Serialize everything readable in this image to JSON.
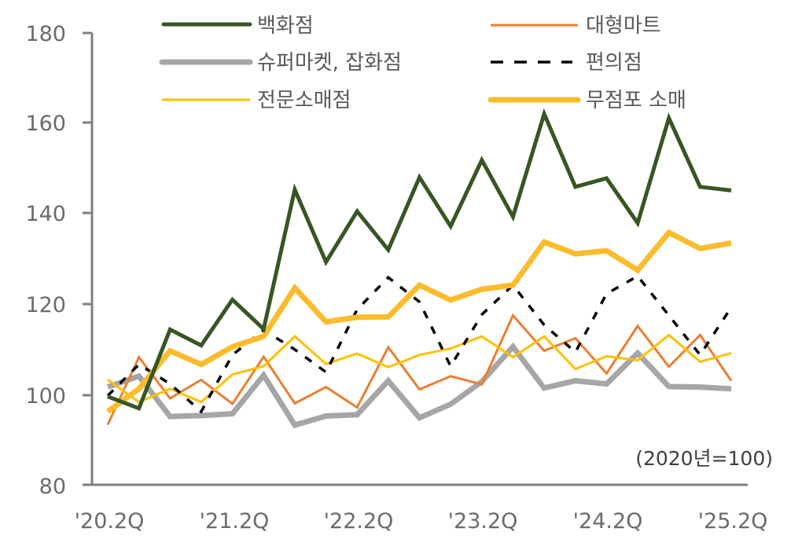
{
  "chart_data": {
    "type": "line",
    "title": "",
    "xlabel": "",
    "ylabel": "",
    "annotation": "(2020년=100)",
    "ylim": [
      80,
      180
    ],
    "yticks": [
      80,
      100,
      120,
      140,
      160,
      180
    ],
    "grid": false,
    "legend_position": "top",
    "x": [
      "'20.2Q",
      "'20.3Q",
      "'20.4Q",
      "'21.1Q",
      "'21.2Q",
      "'21.3Q",
      "'21.4Q",
      "'22.1Q",
      "'22.2Q",
      "'22.3Q",
      "'22.4Q",
      "'23.1Q",
      "'23.2Q",
      "'23.3Q",
      "'23.4Q",
      "'24.1Q",
      "'24.2Q",
      "'24.3Q",
      "'24.4Q",
      "'25.1Q",
      "'25.2Q"
    ],
    "x_tick_labels": [
      "'20.2Q",
      "'21.2Q",
      "'22.2Q",
      "'23.2Q",
      "'24.2Q",
      "'25.2Q"
    ],
    "x_tick_indices": [
      0,
      4,
      8,
      12,
      16,
      20
    ],
    "series": [
      {
        "name": "백화점",
        "color": "#375623",
        "width": 5,
        "dash": "",
        "values": [
          99.7,
          97.1,
          114.5,
          111.0,
          121.1,
          114.6,
          145.4,
          129.4,
          140.6,
          132.1,
          148.1,
          137.3,
          151.9,
          139.4,
          162.1,
          146.0,
          147.9,
          138.0,
          161.2,
          146.0,
          145.2
        ]
      },
      {
        "name": "대형마트",
        "color": "#ED7D31",
        "width": 3,
        "dash": "",
        "values": [
          93.5,
          108.4,
          99.3,
          103.4,
          98.1,
          108.5,
          98.2,
          101.8,
          97.3,
          110.6,
          101.3,
          104.2,
          102.4,
          117.6,
          109.8,
          112.6,
          104.8,
          115.3,
          106.3,
          113.3,
          103.2
        ]
      },
      {
        "name": "슈퍼마켓, 잡화점",
        "color": "#A6A6A6",
        "width": 7,
        "dash": "",
        "values": [
          101.8,
          104.2,
          95.3,
          95.5,
          95.9,
          104.4,
          93.4,
          95.4,
          95.7,
          103.2,
          95.0,
          98.0,
          103.0,
          110.7,
          101.6,
          103.2,
          102.5,
          109.3,
          101.9,
          101.8,
          101.4
        ]
      },
      {
        "name": "편의점",
        "color": "#000000",
        "width": 3.5,
        "dash": "10 12",
        "values": [
          99.9,
          106.8,
          102.5,
          96.4,
          108.9,
          114.4,
          110.1,
          105.1,
          118.9,
          126.0,
          120.6,
          106.4,
          117.8,
          124.3,
          115.5,
          109.5,
          122.4,
          126.3,
          117.6,
          108.9,
          119.4
        ]
      },
      {
        "name": "전문소매점",
        "color": "#FFC000",
        "width": 3,
        "dash": "",
        "values": [
          103.4,
          98.5,
          101.4,
          98.5,
          104.6,
          106.4,
          113.0,
          106.9,
          109.2,
          106.2,
          108.9,
          110.3,
          113.0,
          108.4,
          113.0,
          105.8,
          108.6,
          107.7,
          113.3,
          107.4,
          109.3
        ]
      },
      {
        "name": "무점포 소매",
        "color": "#FBBC2C",
        "width": 7,
        "dash": "",
        "values": [
          96.4,
          101.4,
          109.8,
          106.8,
          110.7,
          113.0,
          123.7,
          116.2,
          117.2,
          117.3,
          124.3,
          121.0,
          123.4,
          124.3,
          133.8,
          131.2,
          131.9,
          127.6,
          135.9,
          132.4,
          133.6
        ]
      }
    ]
  },
  "legend": {
    "items": [
      {
        "label": "백화점"
      },
      {
        "label": "대형마트"
      },
      {
        "label": "슈퍼마켓, 잡화점"
      },
      {
        "label": "편의점"
      },
      {
        "label": "전문소매점"
      },
      {
        "label": "무점포 소매"
      }
    ]
  },
  "axis": {
    "y_labels": [
      "180",
      "160",
      "140",
      "120",
      "100",
      "80"
    ],
    "x_labels": [
      "'20.2Q",
      "'21.2Q",
      "'22.2Q",
      "'23.2Q",
      "'24.2Q",
      "'25.2Q"
    ],
    "axis_color": "#7f7f7f"
  },
  "note": "(2020년=100)"
}
